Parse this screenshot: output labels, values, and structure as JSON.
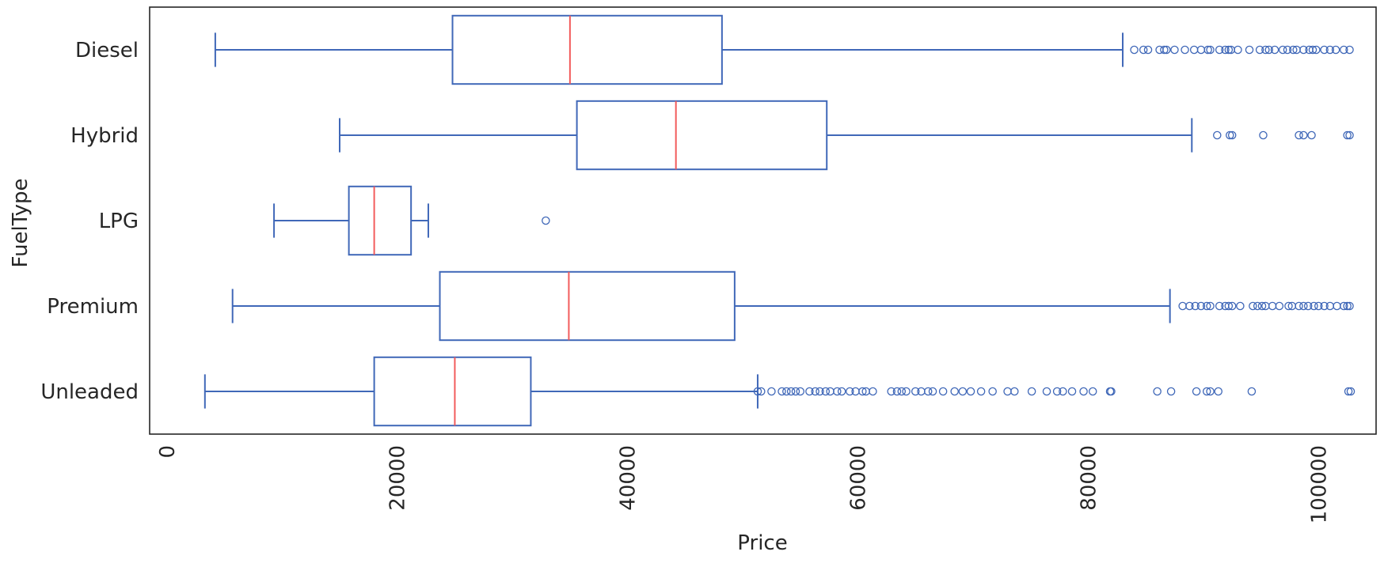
{
  "chart_data": {
    "type": "boxplot",
    "orientation": "horizontal",
    "xlabel": "Price",
    "ylabel": "FuelType",
    "xlim": [
      -1500,
      105000
    ],
    "xticks": [
      0,
      20000,
      40000,
      60000,
      80000,
      100000
    ],
    "xtick_labels": [
      "0",
      "20000",
      "40000",
      "60000",
      "80000",
      "100000"
    ],
    "xtick_rotation": 90,
    "grid": false,
    "colors": {
      "box": "#4068b8",
      "median": "#f25c5c",
      "frame": "#262626"
    },
    "categories": [
      "Diesel",
      "Hybrid",
      "LPG",
      "Premium",
      "Unleaded"
    ],
    "boxes": [
      {
        "category": "Diesel",
        "whisker_low": 4200,
        "q1": 24800,
        "median": 35000,
        "q3": 48200,
        "whisker_high": 83000,
        "fliers": [
          84000,
          84800,
          85200,
          86200,
          86600,
          86800,
          87500,
          88400,
          89200,
          89800,
          90400,
          90600,
          91400,
          91900,
          92200,
          92400,
          93000,
          94000,
          94900,
          95400,
          95700,
          96200,
          96900,
          97300,
          97800,
          98100,
          98700,
          99200,
          99500,
          99800,
          100500,
          101000,
          101500,
          102200,
          102700
        ]
      },
      {
        "category": "Hybrid",
        "whisker_low": 15000,
        "q1": 35600,
        "median": 44200,
        "q3": 57300,
        "whisker_high": 89000,
        "fliers": [
          91200,
          92300,
          92500,
          95200,
          98300,
          98700,
          99400,
          102500,
          102700
        ]
      },
      {
        "category": "LPG",
        "whisker_low": 9300,
        "q1": 15800,
        "median": 18000,
        "q3": 21200,
        "whisker_high": 22700,
        "fliers": [
          32900
        ]
      },
      {
        "category": "Premium",
        "whisker_low": 5700,
        "q1": 23700,
        "median": 34900,
        "q3": 49300,
        "whisker_high": 87100,
        "fliers": [
          88200,
          88800,
          89300,
          89800,
          90300,
          90600,
          91400,
          91900,
          92200,
          92500,
          93200,
          94300,
          94700,
          95100,
          95400,
          96000,
          96600,
          97400,
          97700,
          98300,
          98700,
          99100,
          99600,
          100000,
          100500,
          101000,
          101600,
          102200,
          102500,
          102700
        ]
      },
      {
        "category": "Unleaded",
        "whisker_low": 3300,
        "q1": 18000,
        "median": 25000,
        "q3": 31600,
        "whisker_high": 51300,
        "fliers": [
          51300,
          51600,
          52500,
          53400,
          53800,
          54200,
          54600,
          55000,
          55800,
          56300,
          56700,
          57200,
          57600,
          58200,
          58600,
          59300,
          59800,
          60400,
          60700,
          61300,
          62900,
          63400,
          63800,
          64200,
          65000,
          65500,
          66100,
          66500,
          67400,
          68400,
          69100,
          69800,
          70700,
          71700,
          73000,
          73600,
          75100,
          76400,
          77300,
          77800,
          78600,
          79600,
          80400,
          81900,
          82000,
          86000,
          87200,
          89400,
          90300,
          90600,
          91300,
          94200,
          102600,
          102800
        ]
      }
    ]
  }
}
